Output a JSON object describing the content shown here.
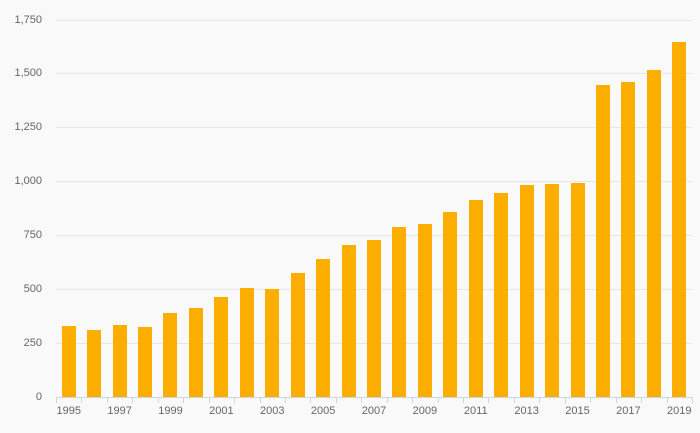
{
  "chart_data": {
    "type": "bar",
    "title": "",
    "xlabel": "",
    "ylabel": "",
    "categories": [
      1995,
      1996,
      1997,
      1998,
      1999,
      2000,
      2001,
      2002,
      2003,
      2004,
      2005,
      2006,
      2007,
      2008,
      2009,
      2010,
      2011,
      2012,
      2013,
      2014,
      2015,
      2016,
      2017,
      2018,
      2019
    ],
    "values": [
      330,
      310,
      335,
      325,
      390,
      415,
      465,
      505,
      500,
      575,
      640,
      705,
      730,
      790,
      805,
      860,
      915,
      945,
      985,
      990,
      995,
      1450,
      1460,
      1520,
      1650
    ],
    "ylim": [
      0,
      1750
    ],
    "y_ticks": [
      0,
      250,
      500,
      750,
      1000,
      1250,
      1500,
      1750
    ],
    "y_tick_labels": [
      "0",
      "250",
      "500",
      "750",
      "1,000",
      "1,250",
      "1,500",
      "1,750"
    ],
    "x_tick_labels": [
      "1995",
      "1997",
      "1999",
      "2001",
      "2003",
      "2005",
      "2007",
      "2009",
      "2011",
      "2013",
      "2015",
      "2017",
      "2019"
    ],
    "grid": true,
    "legend": "none",
    "colors": {
      "bar": "#fbad00",
      "background": "#f9f9f9",
      "gridline": "#e6e6e6",
      "axis_line": "#ccd6eb",
      "label_text": "#666666"
    }
  }
}
